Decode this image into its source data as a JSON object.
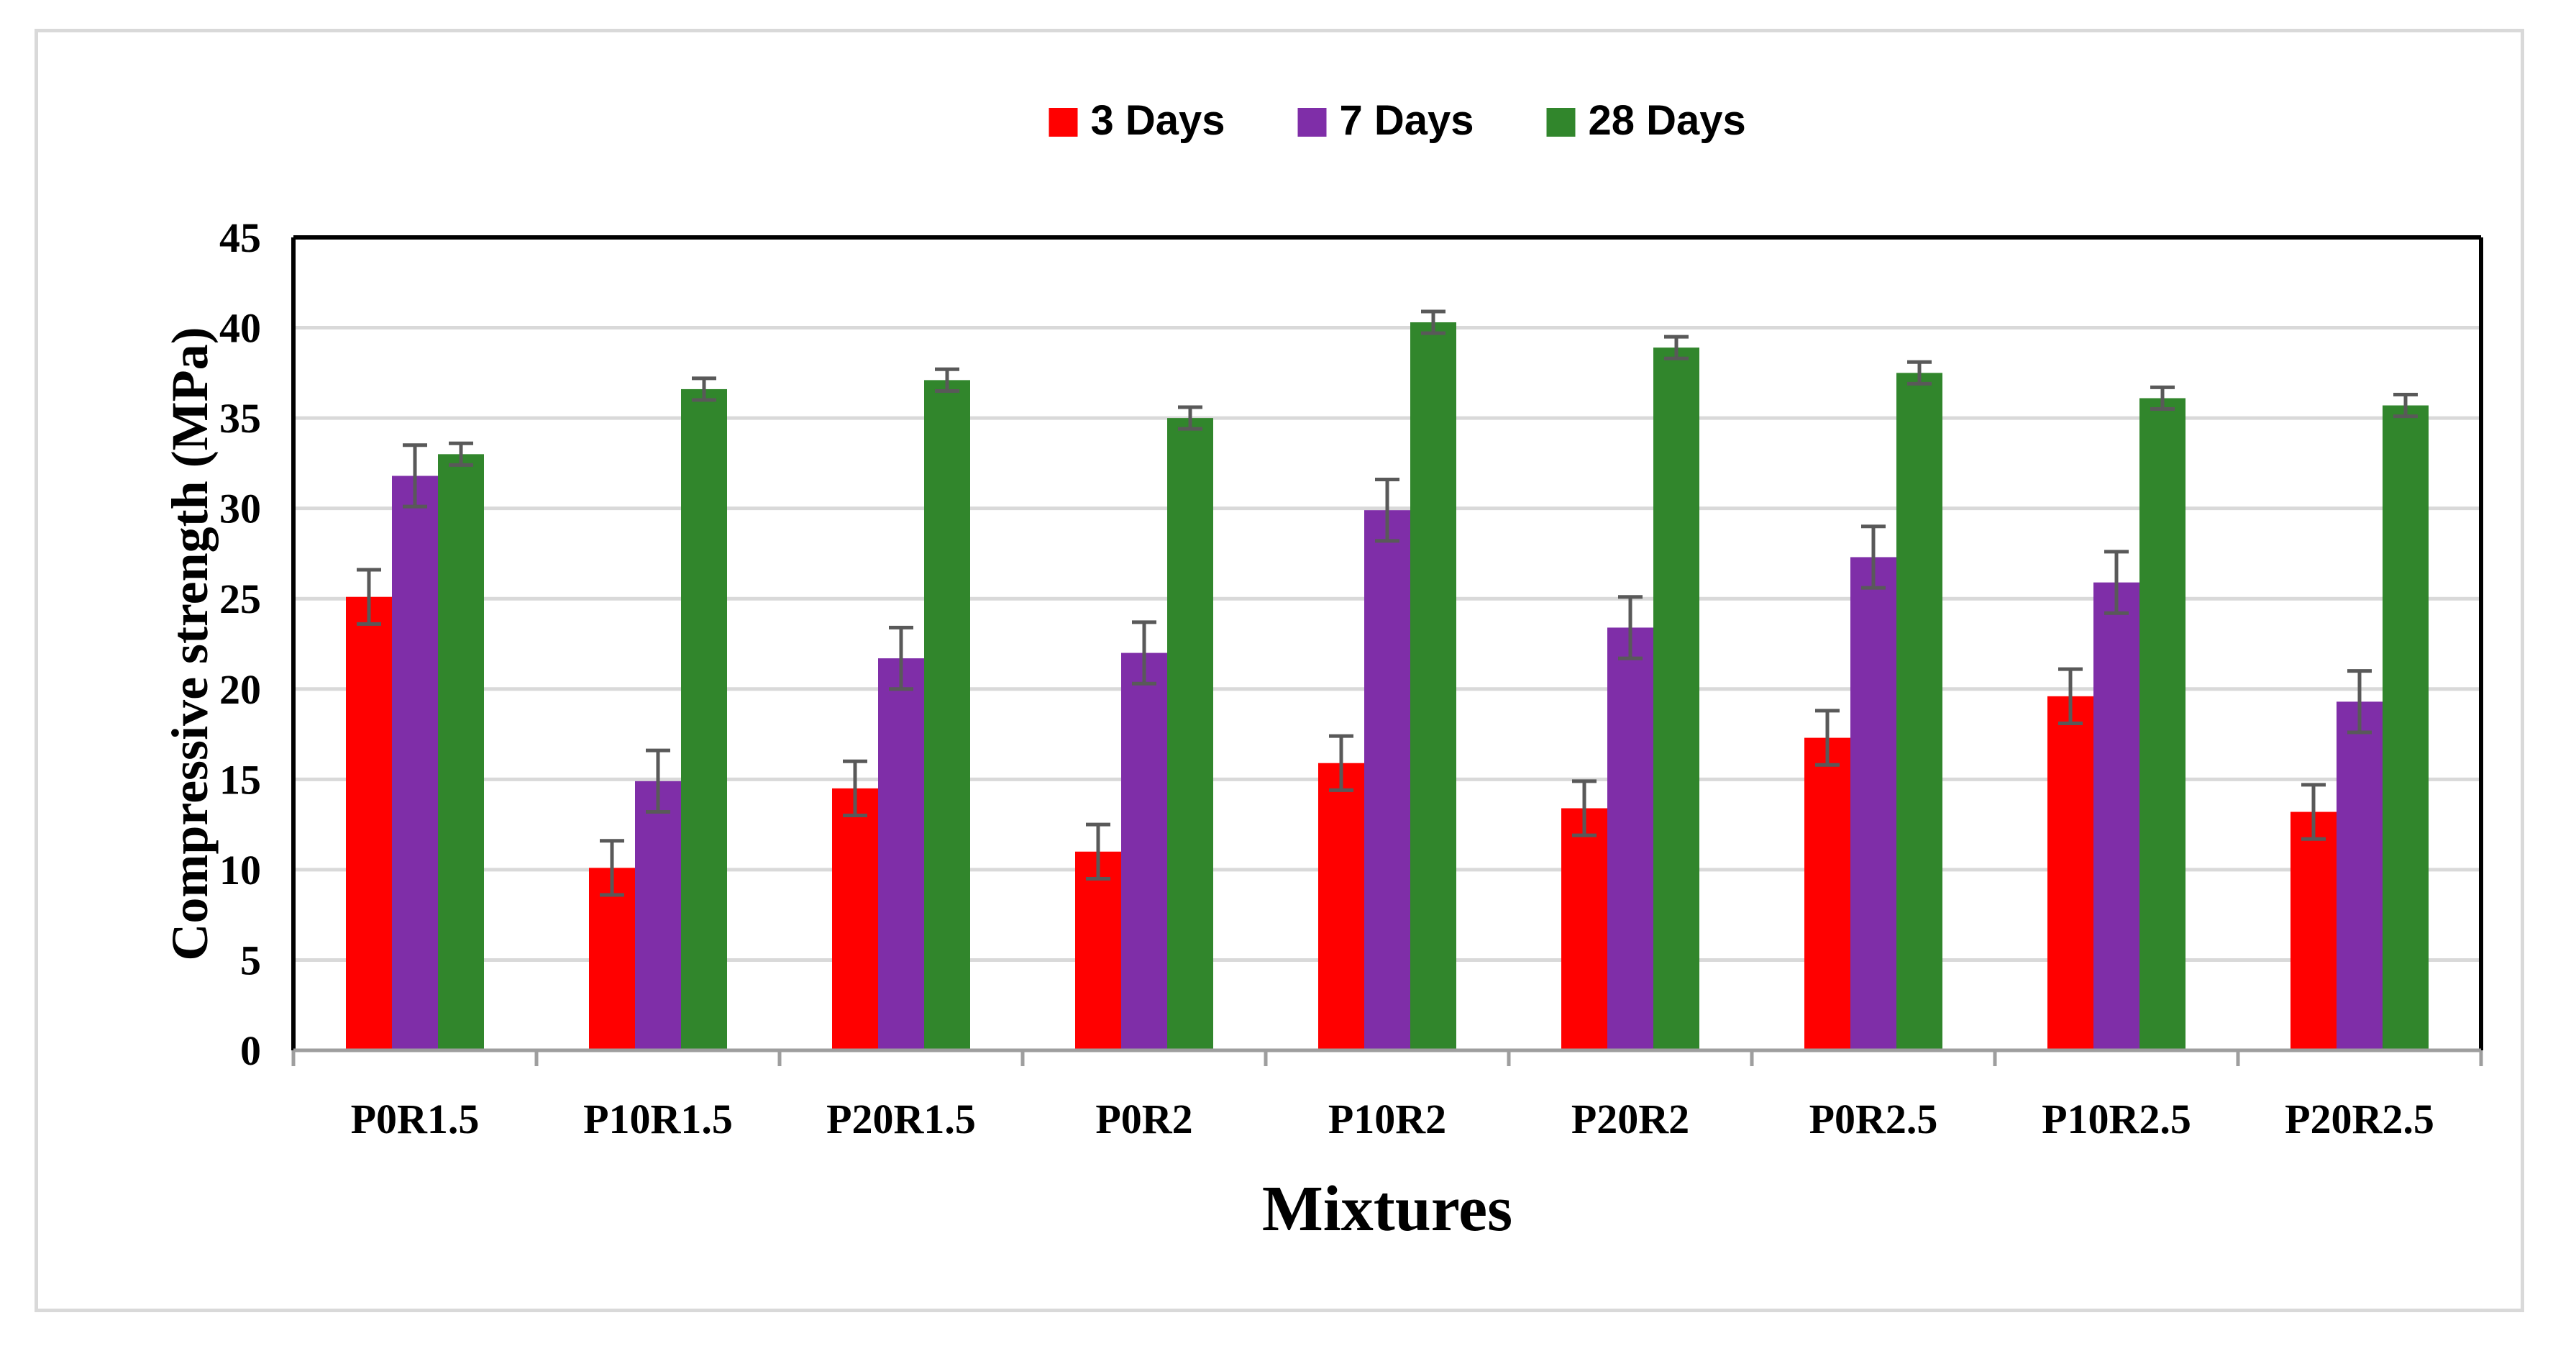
{
  "chart_data": {
    "type": "bar",
    "title": "",
    "xlabel": "Mixtures",
    "ylabel": "Compressive strength (MPa)",
    "ylim": [
      0,
      45
    ],
    "ytick_step": 5,
    "grid": "horizontal",
    "legend_position": "top-center",
    "categories": [
      "P0R1.5",
      "P10R1.5",
      "P20R1.5",
      "P0R2",
      "P10R2",
      "P20R2",
      "P0R2.5",
      "P10R2.5",
      "P20R2.5"
    ],
    "series": [
      {
        "name": "3 Days",
        "color": "#ff0000",
        "values": [
          25.1,
          10.1,
          14.5,
          11.0,
          15.9,
          13.4,
          17.3,
          19.6,
          13.2
        ],
        "errors": [
          1.5,
          1.5,
          1.5,
          1.5,
          1.5,
          1.5,
          1.5,
          1.5,
          1.5
        ]
      },
      {
        "name": "7 Days",
        "color": "#7f2ea8",
        "values": [
          31.8,
          14.9,
          21.7,
          22.0,
          29.9,
          23.4,
          27.3,
          25.9,
          19.3
        ],
        "errors": [
          1.7,
          1.7,
          1.7,
          1.7,
          1.7,
          1.7,
          1.7,
          1.7,
          1.7
        ]
      },
      {
        "name": "28 Days",
        "color": "#31862c",
        "values": [
          33.0,
          36.6,
          37.1,
          35.0,
          40.3,
          38.9,
          37.5,
          36.1,
          35.7
        ],
        "errors": [
          0.6,
          0.6,
          0.6,
          0.6,
          0.6,
          0.6,
          0.6,
          0.6,
          0.6
        ]
      }
    ]
  }
}
